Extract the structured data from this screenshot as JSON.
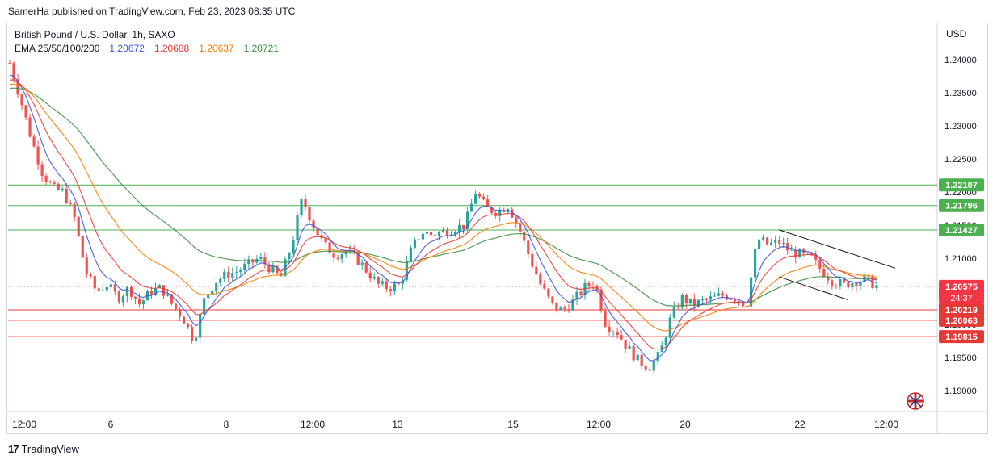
{
  "header": {
    "publisher": "SamerHa published on TradingView.com, Feb 23, 2023 08:35 UTC"
  },
  "legend": {
    "symbol": "British Pound / U.S. Dollar, 1h, SAXO",
    "ema_label": "EMA 25/50/100/200",
    "ema_values": [
      {
        "value": "1.20672",
        "color": "#3f51d8"
      },
      {
        "value": "1.20688",
        "color": "#e53935"
      },
      {
        "value": "1.20637",
        "color": "#f57c00"
      },
      {
        "value": "1.20721",
        "color": "#388e3c"
      }
    ]
  },
  "price_axis": {
    "currency": "USD",
    "ticks": [
      "1.24000",
      "1.23500",
      "1.23000",
      "1.22500",
      "1.22000",
      "1.21500",
      "1.21000",
      "1.20500",
      "1.20000",
      "1.19500",
      "1.19000"
    ]
  },
  "time_axis": {
    "labels": [
      "12:00",
      "6",
      "8",
      "12:00",
      "13",
      "15",
      "12:00",
      "20",
      "22",
      "12:00"
    ]
  },
  "levels": {
    "resistance": [
      {
        "price": 1.22107,
        "label": "1.22107"
      },
      {
        "price": 1.21796,
        "label": "1.21796"
      },
      {
        "price": 1.21427,
        "label": "1.21427"
      }
    ],
    "current": {
      "price": 1.20575,
      "label": "1.20575",
      "countdown": "24:37"
    },
    "support": [
      {
        "price": 1.20219,
        "label": "1.20219"
      },
      {
        "price": 1.20063,
        "label": "1.20063"
      },
      {
        "price": 1.19815,
        "label": "1.19815"
      }
    ]
  },
  "colors": {
    "up": "#26a69a",
    "down": "#ef5350",
    "resistance": "#4caf50",
    "support": "#e53935",
    "current": "#f23645",
    "ema25": "#3f51d8",
    "ema50": "#e53935",
    "ema100": "#f57c00",
    "ema200": "#388e3c"
  },
  "footer": {
    "brand": "TradingView"
  },
  "chart_data": {
    "type": "candlestick",
    "title": "British Pound / U.S. Dollar, 1h, SAXO",
    "ylim": [
      1.1875,
      1.2425
    ],
    "x_labels": [
      "12:00",
      "6",
      "8",
      "12:00",
      "13",
      "15",
      "12:00",
      "20",
      "22",
      "12:00"
    ],
    "close_path": [
      [
        0,
        1.2395
      ],
      [
        1,
        1.234
      ],
      [
        2,
        1.228
      ],
      [
        3,
        1.223
      ],
      [
        4,
        1.2205
      ],
      [
        5,
        1.22
      ],
      [
        6,
        1.216
      ],
      [
        7,
        1.208
      ],
      [
        8,
        1.205
      ],
      [
        9,
        1.206
      ],
      [
        10,
        1.204
      ],
      [
        11,
        1.2055
      ],
      [
        12,
        1.203
      ],
      [
        13,
        1.205
      ],
      [
        14,
        1.2055
      ],
      [
        15,
        1.203
      ],
      [
        16,
        1.201
      ],
      [
        17,
        1.1975
      ],
      [
        18,
        1.204
      ],
      [
        19,
        1.2065
      ],
      [
        20,
        1.2075
      ],
      [
        21,
        1.208
      ],
      [
        22,
        1.209
      ],
      [
        23,
        1.21
      ],
      [
        24,
        1.2085
      ],
      [
        25,
        1.207
      ],
      [
        26,
        1.212
      ],
      [
        27,
        1.219
      ],
      [
        28,
        1.215
      ],
      [
        29,
        1.212
      ],
      [
        30,
        1.2105
      ],
      [
        31,
        1.211
      ],
      [
        32,
        1.21
      ],
      [
        33,
        1.208
      ],
      [
        34,
        1.206
      ],
      [
        35,
        1.2055
      ],
      [
        36,
        1.206
      ],
      [
        37,
        1.211
      ],
      [
        38,
        1.214
      ],
      [
        39,
        1.2135
      ],
      [
        40,
        1.214
      ],
      [
        41,
        1.2145
      ],
      [
        42,
        1.215
      ],
      [
        43,
        1.22
      ],
      [
        44,
        1.2175
      ],
      [
        45,
        1.217
      ],
      [
        46,
        1.218
      ],
      [
        47,
        1.2145
      ],
      [
        48,
        1.21
      ],
      [
        49,
        1.206
      ],
      [
        50,
        1.203
      ],
      [
        51,
        1.202
      ],
      [
        52,
        1.2035
      ],
      [
        53,
        1.2055
      ],
      [
        54,
        1.2065
      ],
      [
        55,
        1.2
      ],
      [
        56,
        1.199
      ],
      [
        57,
        1.1965
      ],
      [
        58,
        1.1945
      ],
      [
        59,
        1.1935
      ],
      [
        60,
        1.1955
      ],
      [
        61,
        1.201
      ],
      [
        62,
        1.204
      ],
      [
        63,
        1.203
      ],
      [
        64,
        1.2035
      ],
      [
        65,
        1.204
      ],
      [
        66,
        1.2045
      ],
      [
        67,
        1.204
      ],
      [
        68,
        1.203
      ],
      [
        69,
        1.213
      ],
      [
        70,
        1.212
      ],
      [
        71,
        1.2125
      ],
      [
        72,
        1.211
      ],
      [
        73,
        1.2105
      ],
      [
        74,
        1.21
      ],
      [
        75,
        1.208
      ],
      [
        76,
        1.2065
      ],
      [
        77,
        1.206
      ],
      [
        78,
        1.2065
      ],
      [
        79,
        1.2068
      ],
      [
        80,
        1.2058
      ]
    ],
    "series": [
      {
        "name": "EMA 25",
        "last": 1.20672
      },
      {
        "name": "EMA 50",
        "last": 1.20688
      },
      {
        "name": "EMA 100",
        "last": 1.20637
      },
      {
        "name": "EMA 200",
        "last": 1.20721
      }
    ],
    "pattern": {
      "type": "descending channel",
      "upper": [
        [
          72,
          1.214
        ],
        [
          84,
          1.2085
        ]
      ],
      "lower": [
        [
          72,
          1.207
        ],
        [
          77,
          1.2055
        ]
      ]
    }
  }
}
